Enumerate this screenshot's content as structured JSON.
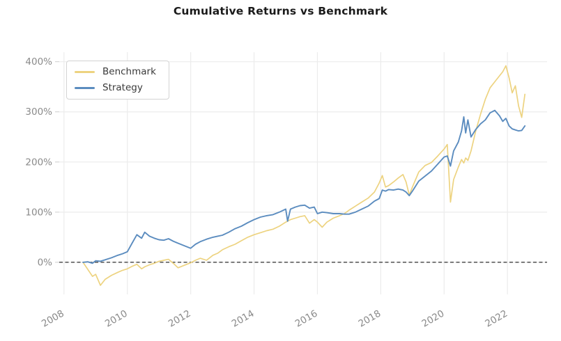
{
  "chart_data": {
    "type": "line",
    "title": "Cumulative Returns vs Benchmark",
    "xlabel": "",
    "ylabel": "",
    "x_units": "year",
    "y_units": "percent cumulative return",
    "grid": true,
    "legend_position": "upper left",
    "zero_line": true,
    "xlim": [
      2007.85,
      2023.25
    ],
    "ylim": [
      -64,
      419
    ],
    "x_ticks": [
      2008,
      2010,
      2012,
      2014,
      2016,
      2018,
      2020,
      2022
    ],
    "x_tick_labels": [
      "2008",
      "2010",
      "2012",
      "2014",
      "2016",
      "2018",
      "2020",
      "2022"
    ],
    "y_ticks": [
      0,
      100,
      200,
      300,
      400
    ],
    "y_tick_labels": [
      "0%",
      "100%",
      "200%",
      "300%",
      "400%"
    ],
    "x": [
      2008.6,
      2008.75,
      2008.9,
      2009.0,
      2009.15,
      2009.3,
      2009.5,
      2009.7,
      2009.85,
      2010.0,
      2010.15,
      2010.3,
      2010.45,
      2010.55,
      2010.7,
      2010.85,
      2011.0,
      2011.15,
      2011.3,
      2011.45,
      2011.6,
      2011.8,
      2012.0,
      2012.15,
      2012.3,
      2012.5,
      2012.7,
      2012.85,
      2013.0,
      2013.2,
      2013.4,
      2013.6,
      2013.8,
      2014.0,
      2014.2,
      2014.4,
      2014.6,
      2014.8,
      2015.0,
      2015.06,
      2015.15,
      2015.3,
      2015.45,
      2015.6,
      2015.75,
      2015.9,
      2016.0,
      2016.15,
      2016.3,
      2016.5,
      2016.7,
      2016.85,
      2017.0,
      2017.2,
      2017.4,
      2017.6,
      2017.8,
      2017.95,
      2018.05,
      2018.15,
      2018.25,
      2018.4,
      2018.55,
      2018.7,
      2018.8,
      2018.9,
      2019.0,
      2019.2,
      2019.4,
      2019.6,
      2019.8,
      2020.0,
      2020.1,
      2020.2,
      2020.3,
      2020.45,
      2020.55,
      2020.62,
      2020.68,
      2020.75,
      2020.85,
      2021.0,
      2021.15,
      2021.3,
      2021.45,
      2021.6,
      2021.75,
      2021.85,
      2021.95,
      2022.05,
      2022.15,
      2022.25,
      2022.35,
      2022.45,
      2022.55
    ],
    "series": [
      {
        "name": "Benchmark",
        "color": "#EDD380",
        "values": [
          0,
          -14,
          -28,
          -24,
          -46,
          -34,
          -26,
          -20,
          -16,
          -13,
          -8,
          -4,
          -13,
          -9,
          -5,
          -2,
          2,
          4,
          6,
          -2,
          -11,
          -6,
          -1,
          4,
          8,
          4,
          14,
          18,
          25,
          31,
          36,
          43,
          50,
          55,
          59,
          63,
          66,
          72,
          80,
          82,
          85,
          88,
          91,
          93,
          78,
          85,
          80,
          70,
          80,
          88,
          93,
          97,
          104,
          112,
          120,
          128,
          140,
          158,
          173,
          150,
          153,
          160,
          168,
          175,
          160,
          134,
          150,
          180,
          193,
          199,
          212,
          226,
          235,
          120,
          165,
          190,
          205,
          198,
          208,
          203,
          222,
          262,
          295,
          325,
          348,
          360,
          372,
          380,
          392,
          368,
          338,
          352,
          312,
          289,
          335
        ]
      },
      {
        "name": "Strategy",
        "color": "#5B8CBF",
        "values": [
          0,
          1,
          -2,
          3,
          2,
          5,
          9,
          14,
          17,
          21,
          38,
          55,
          48,
          60,
          52,
          48,
          45,
          44,
          47,
          42,
          38,
          33,
          28,
          36,
          41,
          46,
          50,
          52,
          54,
          60,
          67,
          72,
          79,
          85,
          90,
          93,
          95,
          100,
          106,
          82,
          106,
          110,
          113,
          114,
          108,
          110,
          97,
          100,
          99,
          97,
          97,
          96,
          96,
          100,
          106,
          112,
          122,
          127,
          144,
          142,
          145,
          144,
          146,
          144,
          140,
          133,
          142,
          162,
          172,
          182,
          196,
          210,
          212,
          192,
          222,
          240,
          262,
          290,
          258,
          284,
          250,
          265,
          276,
          284,
          298,
          303,
          292,
          281,
          287,
          272,
          266,
          264,
          262,
          263,
          272
        ]
      }
    ]
  },
  "colors": {
    "background": "#ffffff",
    "title_text": "#1b1b1b",
    "tick_label": "#8a8a8a",
    "gridline": "#ececec",
    "tick_mark": "#cccccc",
    "zero_line": "#2e2e2e",
    "legend_border": "#d3d3d3",
    "legend_text": "#3a3a3a",
    "benchmark_line": "#EDD380",
    "strategy_line": "#5B8CBF"
  },
  "legend": {
    "items": [
      {
        "label": "Benchmark",
        "color": "#EDD380"
      },
      {
        "label": "Strategy",
        "color": "#5B8CBF"
      }
    ]
  }
}
